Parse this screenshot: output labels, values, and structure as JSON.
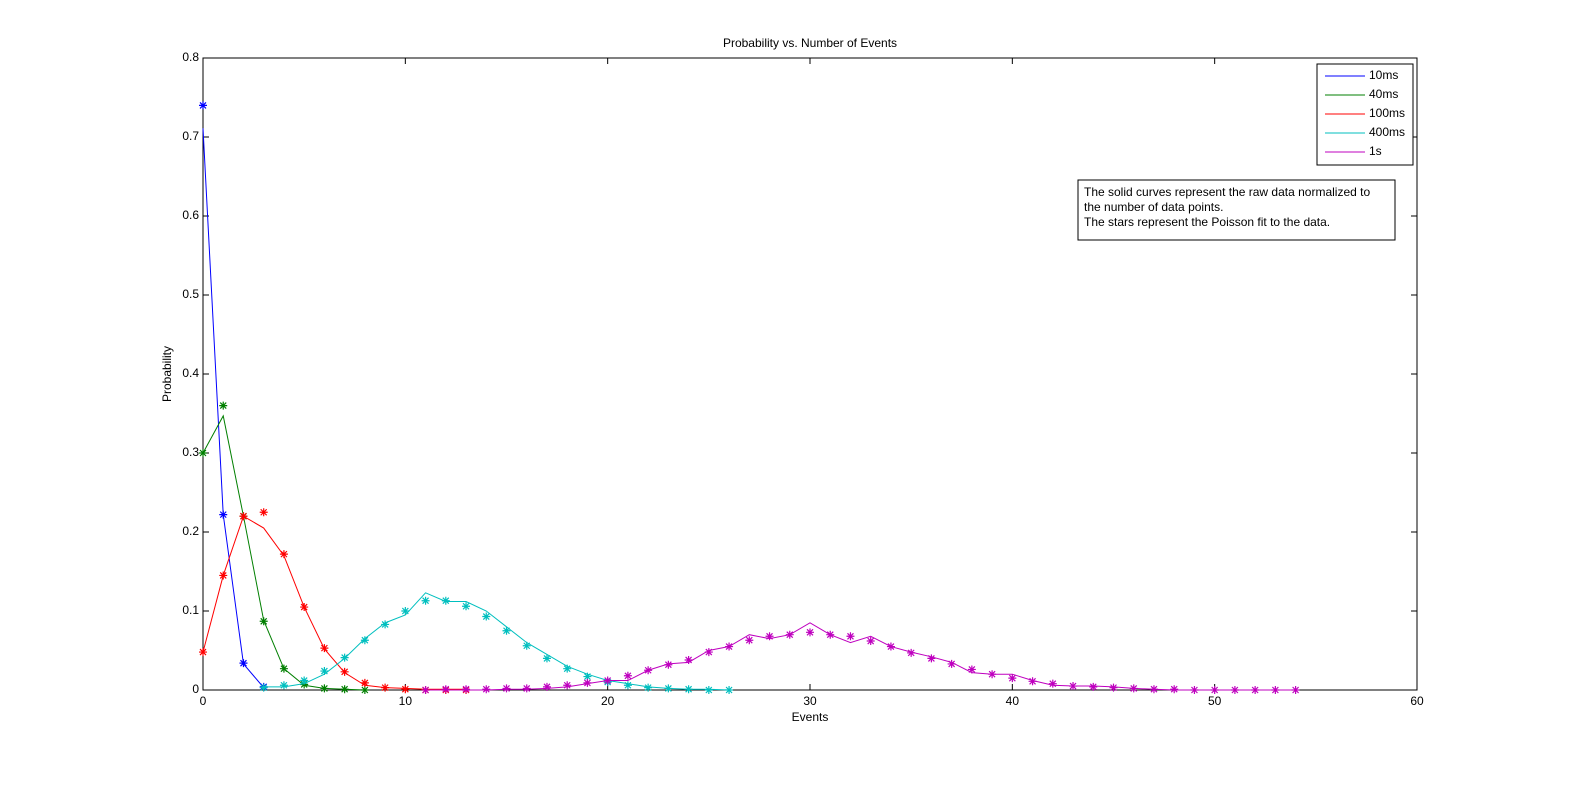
{
  "chart_data": {
    "type": "line",
    "title": "Probability vs. Number of Events",
    "x_label": "Events",
    "y_label": "Probability",
    "xlim": [
      0,
      60
    ],
    "xticks": [
      0,
      10,
      20,
      30,
      40,
      50,
      60
    ],
    "ylim": [
      0,
      0.8
    ],
    "yticks": [
      0,
      0.1,
      0.2,
      0.3,
      0.4,
      0.5,
      0.6,
      0.7,
      0.8
    ],
    "legend": "top-right",
    "annotation": [
      "The solid curves represent the raw data normalized to",
      "the number of data points.",
      "The stars represent the Poisson fit to the data."
    ],
    "series": [
      {
        "name": "10ms",
        "color": "#0000ff",
        "x": [
          0,
          1,
          2,
          3
        ],
        "values": [
          0.711,
          0.222,
          0.033,
          0.003
        ],
        "fit_values": [
          0.74,
          0.222,
          0.034,
          0.004
        ]
      },
      {
        "name": "40ms",
        "color": "#007f00",
        "x": [
          0,
          1,
          2,
          3,
          4,
          5,
          6,
          7,
          8
        ],
        "values": [
          0.3,
          0.347,
          0.22,
          0.088,
          0.027,
          0.006,
          0.002,
          0.001,
          0
        ],
        "fit_values": [
          0.3,
          0.36,
          0.22,
          0.087,
          0.027,
          0.007,
          0.002,
          0.001,
          0
        ]
      },
      {
        "name": "100ms",
        "color": "#ff0000",
        "x": [
          0,
          1,
          2,
          3,
          4,
          5,
          6,
          7,
          8,
          9,
          10,
          11,
          12,
          13
        ],
        "values": [
          0.048,
          0.145,
          0.22,
          0.205,
          0.17,
          0.105,
          0.052,
          0.022,
          0.006,
          0.003,
          0.002,
          0.001,
          0.001,
          0.001
        ],
        "fit_values": [
          0.048,
          0.145,
          0.22,
          0.225,
          0.172,
          0.105,
          0.053,
          0.023,
          0.009,
          0.003,
          0.001,
          0,
          0,
          0
        ]
      },
      {
        "name": "400ms",
        "color": "#00bfbf",
        "x": [
          3,
          4,
          5,
          6,
          7,
          8,
          9,
          10,
          11,
          12,
          13,
          14,
          15,
          16,
          17,
          18,
          19,
          20,
          21,
          22,
          23,
          24,
          25,
          26
        ],
        "values": [
          0.004,
          0.004,
          0.008,
          0.02,
          0.04,
          0.065,
          0.085,
          0.095,
          0.123,
          0.112,
          0.112,
          0.1,
          0.08,
          0.06,
          0.045,
          0.03,
          0.02,
          0.012,
          0.008,
          0.004,
          0.002,
          0.001,
          0.001,
          0
        ],
        "fit_values": [
          0.003,
          0.006,
          0.012,
          0.024,
          0.041,
          0.063,
          0.083,
          0.1,
          0.113,
          0.113,
          0.106,
          0.093,
          0.075,
          0.056,
          0.04,
          0.027,
          0.017,
          0.01,
          0.006,
          0.003,
          0.002,
          0.001,
          0,
          0
        ]
      },
      {
        "name": "1s",
        "color": "#bf00bf",
        "x": [
          11,
          12,
          13,
          14,
          15,
          16,
          17,
          18,
          19,
          20,
          21,
          22,
          23,
          24,
          25,
          26,
          27,
          28,
          29,
          30,
          31,
          32,
          33,
          34,
          35,
          36,
          37,
          38,
          39,
          40,
          41,
          42,
          43,
          44,
          45,
          46,
          47,
          48,
          49,
          50,
          51,
          52,
          53,
          54
        ],
        "values": [
          0,
          0,
          0,
          0,
          0.001,
          0.001,
          0.002,
          0.004,
          0.008,
          0.012,
          0.012,
          0.025,
          0.033,
          0.035,
          0.05,
          0.055,
          0.07,
          0.065,
          0.07,
          0.085,
          0.07,
          0.06,
          0.068,
          0.055,
          0.048,
          0.042,
          0.035,
          0.022,
          0.02,
          0.02,
          0.012,
          0.006,
          0.005,
          0.005,
          0.004,
          0.002,
          0.001,
          0,
          0,
          0,
          0,
          0,
          0,
          0
        ],
        "fit_values": [
          0,
          0.001,
          0.001,
          0.001,
          0.002,
          0.002,
          0.004,
          0.006,
          0.009,
          0.012,
          0.018,
          0.025,
          0.032,
          0.038,
          0.048,
          0.055,
          0.063,
          0.068,
          0.07,
          0.073,
          0.07,
          0.068,
          0.062,
          0.055,
          0.047,
          0.04,
          0.033,
          0.026,
          0.02,
          0.015,
          0.011,
          0.008,
          0.005,
          0.004,
          0.003,
          0.002,
          0.001,
          0.001,
          0,
          0,
          0,
          0,
          0,
          0
        ]
      }
    ]
  }
}
